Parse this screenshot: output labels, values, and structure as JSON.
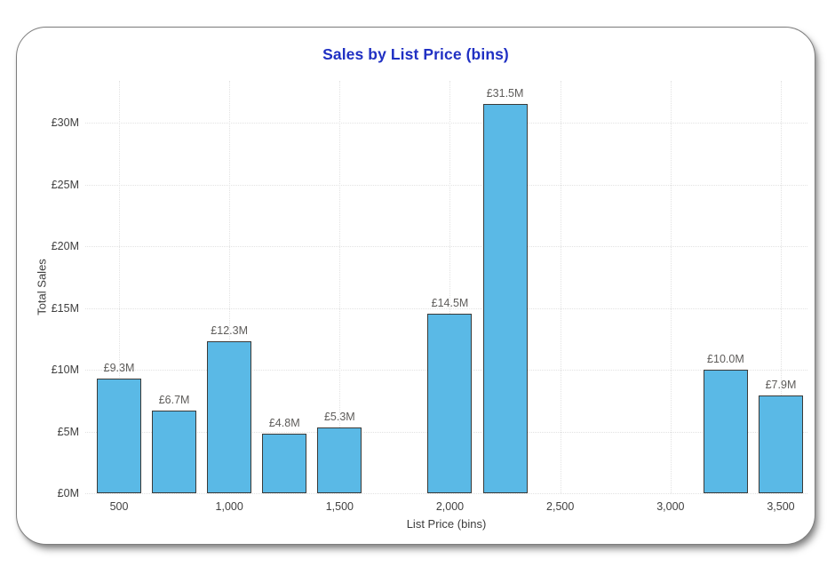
{
  "chart_data": {
    "type": "bar",
    "title": "Sales by List Price (bins)",
    "xlabel": "List Price (bins)",
    "ylabel": "Total Sales",
    "currency": "£",
    "value_suffix": "M",
    "bin_width": 250,
    "grid": true,
    "legend": "none",
    "ylim": [
      0,
      33.4
    ],
    "xlim": [
      350,
      3620
    ],
    "x_ticks": [
      {
        "value": 500,
        "label": "500"
      },
      {
        "value": 1000,
        "label": "1,000"
      },
      {
        "value": 1500,
        "label": "1,500"
      },
      {
        "value": 2000,
        "label": "2,000"
      },
      {
        "value": 2500,
        "label": "2,500"
      },
      {
        "value": 3000,
        "label": "3,000"
      },
      {
        "value": 3500,
        "label": "3,500"
      }
    ],
    "y_ticks": [
      {
        "value": 0,
        "label": "£0M"
      },
      {
        "value": 5,
        "label": "£5M"
      },
      {
        "value": 10,
        "label": "£10M"
      },
      {
        "value": 15,
        "label": "£15M"
      },
      {
        "value": 20,
        "label": "£20M"
      },
      {
        "value": 25,
        "label": "£25M"
      },
      {
        "value": 30,
        "label": "£30M"
      }
    ],
    "bars": [
      {
        "bin": 500,
        "value": 9.3,
        "label": "£9.3M"
      },
      {
        "bin": 750,
        "value": 6.7,
        "label": "£6.7M"
      },
      {
        "bin": 1000,
        "value": 12.3,
        "label": "£12.3M"
      },
      {
        "bin": 1250,
        "value": 4.8,
        "label": "£4.8M"
      },
      {
        "bin": 1500,
        "value": 5.3,
        "label": "£5.3M"
      },
      {
        "bin": 2000,
        "value": 14.5,
        "label": "£14.5M"
      },
      {
        "bin": 2250,
        "value": 31.5,
        "label": "£31.5M"
      },
      {
        "bin": 3250,
        "value": 10.0,
        "label": "£10.0M"
      },
      {
        "bin": 3500,
        "value": 7.9,
        "label": "£7.9M"
      }
    ],
    "colors": {
      "bar_fill": "#5AB9E6",
      "bar_border": "#3A3A38",
      "title": "#2030C3",
      "tick_text": "#404040",
      "axis_title_text": "#3C3C3C",
      "data_label_text": "#5E5C5A",
      "grid": "#E2E2E2",
      "card_border": "#7D7D7D",
      "background": "#FFFFFF"
    }
  }
}
